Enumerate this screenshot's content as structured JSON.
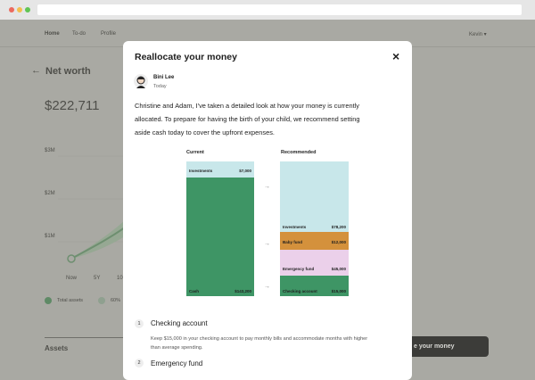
{
  "background": {
    "nav": [
      "Home",
      "To-do",
      "Profile"
    ],
    "user": "Kevin ▾",
    "page_title": "Net worth",
    "amount": "$222,711",
    "axis_labels": [
      "$3M",
      "$2M",
      "$1M"
    ],
    "x_labels": [
      "Now",
      "5Y",
      "10"
    ],
    "legend": [
      "Total assets",
      "60%"
    ],
    "section": "Assets",
    "button": "e your money"
  },
  "modal": {
    "title": "Reallocate your money",
    "close": "×",
    "author": {
      "name": "Bini Lee",
      "time": "Today"
    },
    "paragraph": [
      "Christine and Adam, I've taken a detailed look at how your money is currently",
      "allocated. To prepare for having the birth of your child, we recommend setting",
      "aside cash today to cover the upfront expenses."
    ],
    "allocation": {
      "current": {
        "heading": "Current",
        "items": [
          {
            "label": "Investments",
            "amount": "$7,000"
          },
          {
            "label": "Cash",
            "amount": "$143,200"
          }
        ]
      },
      "recommended": {
        "heading": "Recommended",
        "items": [
          {
            "label": "Investments",
            "amount": "$78,200"
          },
          {
            "label": "Baby fund",
            "amount": "$12,000"
          },
          {
            "label": "Emergency fund",
            "amount": "$45,000"
          },
          {
            "label": "Checking account",
            "amount": "$15,000"
          }
        ]
      }
    },
    "steps": [
      {
        "number": "1",
        "title": "Checking account",
        "description": [
          "Keep $15,000 in your checking account to pay monthly bills and accommodate months with higher",
          "than average spending."
        ]
      },
      {
        "number": "2",
        "title": "Emergency fund"
      }
    ]
  }
}
